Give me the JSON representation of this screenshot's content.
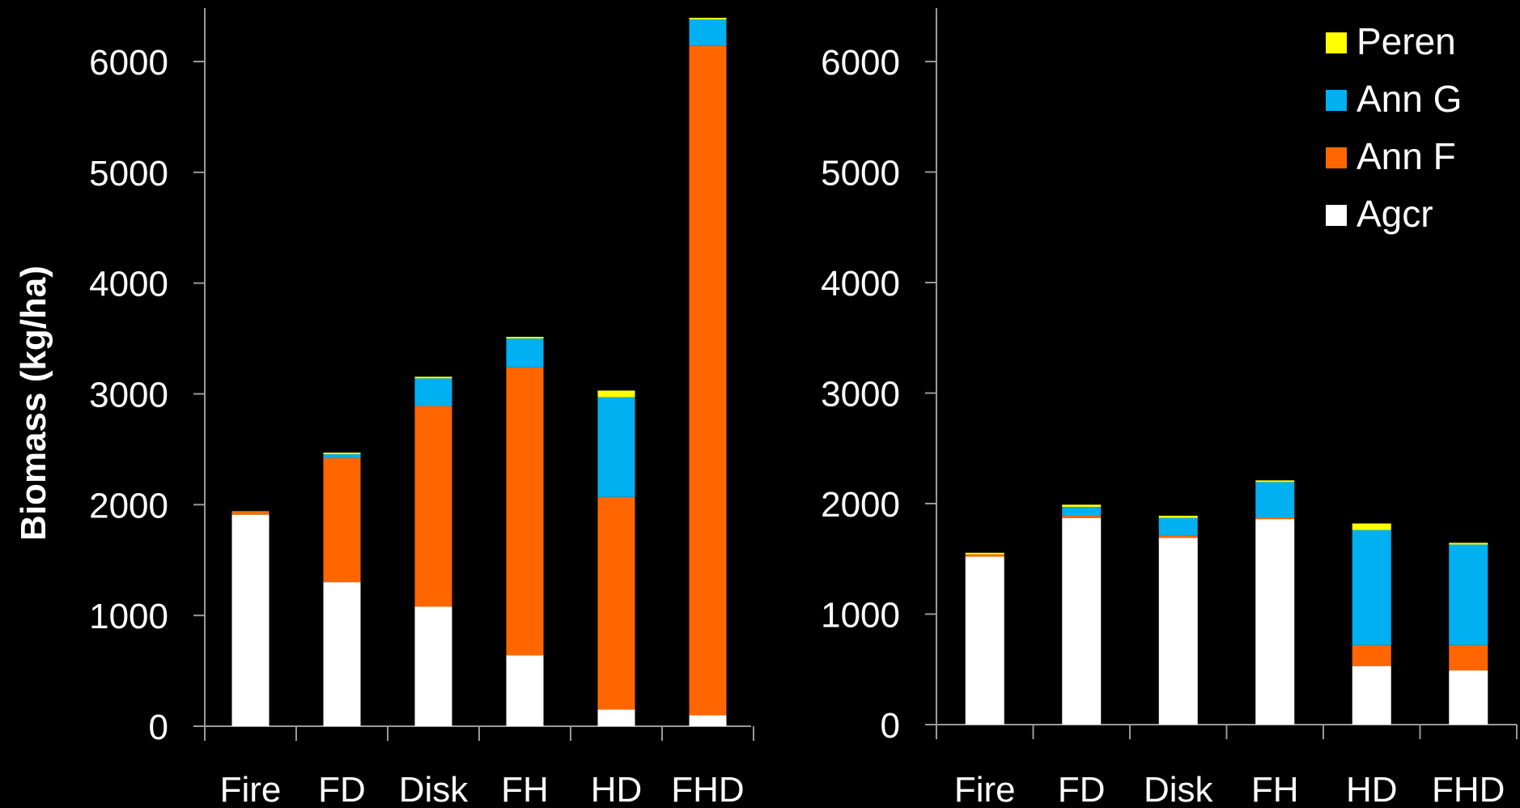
{
  "chart_data": [
    {
      "type": "bar",
      "stacked": true,
      "title": "",
      "ylabel": "Biomass (kg/ha)",
      "xlabel": "",
      "ylim": [
        0,
        6500
      ],
      "yticks": [
        0,
        1000,
        2000,
        3000,
        4000,
        5000,
        6000
      ],
      "categories": [
        "Fire",
        "FD",
        "Disk",
        "FH",
        "HD",
        "FHD"
      ],
      "series": [
        {
          "name": "Agcr",
          "color": "#ffffff",
          "values": [
            1910,
            1300,
            1080,
            640,
            150,
            100
          ]
        },
        {
          "name": "Ann F",
          "color": "#ff6600",
          "values": [
            25,
            1120,
            1810,
            2600,
            1920,
            6040
          ]
        },
        {
          "name": "Ann G",
          "color": "#00b0f0",
          "values": [
            0,
            35,
            250,
            260,
            900,
            240
          ]
        },
        {
          "name": "Peren",
          "color": "#ffff00",
          "values": [
            5,
            15,
            15,
            15,
            60,
            15
          ]
        }
      ],
      "grid": false
    },
    {
      "type": "bar",
      "stacked": true,
      "title": "",
      "ylabel": "",
      "xlabel": "",
      "ylim": [
        0,
        6500
      ],
      "yticks": [
        0,
        1000,
        2000,
        3000,
        4000,
        5000,
        6000
      ],
      "categories": [
        "Fire",
        "FD",
        "Disk",
        "FH",
        "HD",
        "FHD"
      ],
      "series": [
        {
          "name": "Agcr",
          "color": "#ffffff",
          "values": [
            1520,
            1870,
            1690,
            1860,
            530,
            490
          ]
        },
        {
          "name": "Ann F",
          "color": "#ff6600",
          "values": [
            20,
            20,
            20,
            15,
            190,
            230
          ]
        },
        {
          "name": "Ann G",
          "color": "#00b0f0",
          "values": [
            0,
            80,
            160,
            320,
            1040,
            910
          ]
        },
        {
          "name": "Peren",
          "color": "#ffff00",
          "values": [
            15,
            20,
            20,
            15,
            60,
            15
          ]
        }
      ],
      "grid": false
    }
  ],
  "legend": {
    "placement": "top-right",
    "items": [
      {
        "label": "Peren",
        "color": "#ffff00"
      },
      {
        "label": "Ann G",
        "color": "#00b0f0"
      },
      {
        "label": "Ann F",
        "color": "#ff6600"
      },
      {
        "label": "Agcr",
        "color": "#ffffff"
      }
    ]
  },
  "colors": {
    "background": "#000000",
    "axis": "#999999",
    "text": "#ffffff"
  }
}
